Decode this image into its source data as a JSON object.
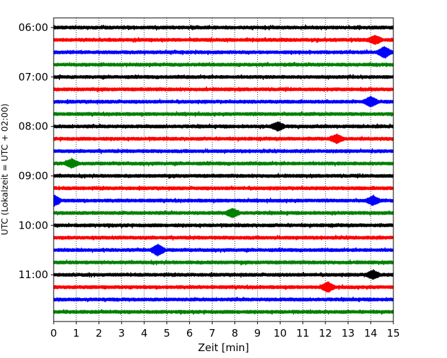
{
  "chart_data": {
    "type": "line",
    "title": "",
    "xlabel": "Zeit  [min]",
    "ylabel": "UTC (Lokalzeit = UTC + 02:00)",
    "xlim": [
      0,
      15
    ],
    "x_ticks": [
      "0",
      "1",
      "2",
      "3",
      "4",
      "5",
      "6",
      "7",
      "8",
      "9",
      "10",
      "11",
      "12",
      "13",
      "14",
      "15"
    ],
    "y_ticks": [
      "06:00",
      "07:00",
      "08:00",
      "09:00",
      "10:00",
      "11:00"
    ],
    "grid": "vertical dotted lines at each minute",
    "colors": [
      "#000000",
      "#ff0000",
      "#0000ff",
      "#008000"
    ],
    "traces_per_hour": 4,
    "trace_minutes": 15,
    "series": [
      {
        "start": "06:00",
        "color": "#000000"
      },
      {
        "start": "06:15",
        "color": "#ff0000"
      },
      {
        "start": "06:30",
        "color": "#0000ff"
      },
      {
        "start": "06:45",
        "color": "#008000"
      },
      {
        "start": "07:00",
        "color": "#000000"
      },
      {
        "start": "07:15",
        "color": "#ff0000"
      },
      {
        "start": "07:30",
        "color": "#0000ff"
      },
      {
        "start": "07:45",
        "color": "#008000"
      },
      {
        "start": "08:00",
        "color": "#000000"
      },
      {
        "start": "08:15",
        "color": "#ff0000"
      },
      {
        "start": "08:30",
        "color": "#0000ff"
      },
      {
        "start": "08:45",
        "color": "#008000"
      },
      {
        "start": "09:00",
        "color": "#000000"
      },
      {
        "start": "09:15",
        "color": "#ff0000"
      },
      {
        "start": "09:30",
        "color": "#0000ff"
      },
      {
        "start": "09:45",
        "color": "#008000"
      },
      {
        "start": "10:00",
        "color": "#000000"
      },
      {
        "start": "10:15",
        "color": "#ff0000"
      },
      {
        "start": "10:30",
        "color": "#0000ff"
      },
      {
        "start": "10:45",
        "color": "#008000"
      },
      {
        "start": "11:00",
        "color": "#000000"
      },
      {
        "start": "11:15",
        "color": "#ff0000"
      },
      {
        "start": "11:30",
        "color": "#0000ff"
      },
      {
        "start": "11:45",
        "color": "#008000"
      }
    ],
    "events": [
      {
        "start": "06:15",
        "minute": 14.2,
        "amp": 1.6
      },
      {
        "start": "06:30",
        "minute": 14.6,
        "amp": 2.2
      },
      {
        "start": "07:30",
        "minute": 14.0,
        "amp": 2.0
      },
      {
        "start": "08:00",
        "minute": 9.9,
        "amp": 1.6
      },
      {
        "start": "08:15",
        "minute": 12.5,
        "amp": 1.6
      },
      {
        "start": "08:45",
        "minute": 0.8,
        "amp": 1.6
      },
      {
        "start": "09:30",
        "minute": 0.0,
        "amp": 2.2
      },
      {
        "start": "09:30",
        "minute": 14.1,
        "amp": 1.7
      },
      {
        "start": "09:45",
        "minute": 7.9,
        "amp": 1.6
      },
      {
        "start": "10:30",
        "minute": 4.6,
        "amp": 2.2
      },
      {
        "start": "11:00",
        "minute": 14.1,
        "amp": 1.6
      },
      {
        "start": "11:15",
        "minute": 12.1,
        "amp": 1.8
      }
    ]
  }
}
